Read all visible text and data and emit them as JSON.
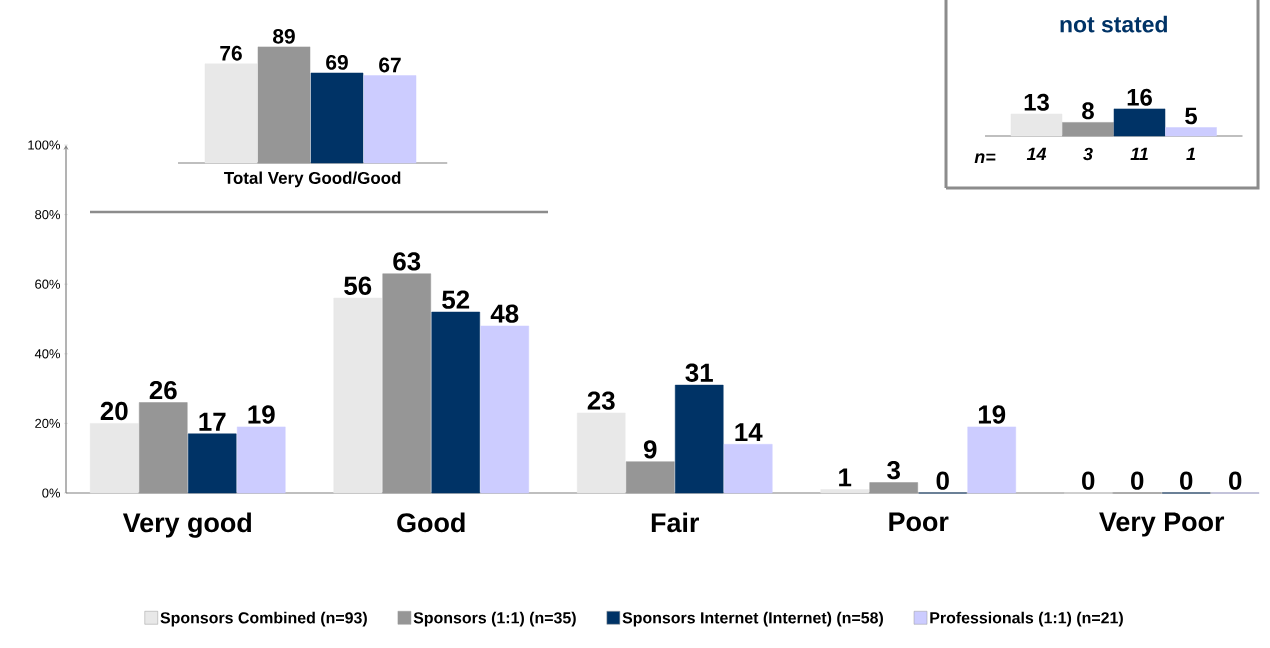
{
  "chart_data": [
    {
      "type": "bar",
      "categories": [
        "Very good",
        "Good",
        "Fair",
        "Poor",
        "Very Poor"
      ],
      "series": [
        {
          "name": "Sponsors Combined (n=93)",
          "color": "#e8e8e8",
          "values": [
            20,
            56,
            23,
            1,
            0
          ]
        },
        {
          "name": "Sponsors (1:1) (n=35)",
          "color": "#969696",
          "values": [
            26,
            63,
            9,
            3,
            0
          ]
        },
        {
          "name": "Sponsors Internet (Internet) (n=58)",
          "color": "#003366",
          "values": [
            17,
            52,
            31,
            0,
            0
          ]
        },
        {
          "name": "Professionals (1:1) (n=21)",
          "color": "#ccccff",
          "values": [
            19,
            48,
            14,
            19,
            0
          ]
        }
      ],
      "ylim": [
        0,
        100
      ],
      "yticks": [
        {
          "value": 0,
          "label": "0%"
        },
        {
          "value": 20,
          "label": "20%"
        },
        {
          "value": 40,
          "label": "40%"
        },
        {
          "value": 60,
          "label": "60%"
        },
        {
          "value": 80,
          "label": "80%"
        },
        {
          "value": 100,
          "label": "100%"
        }
      ],
      "data_labels": true,
      "legend": "bottom"
    },
    {
      "type": "bar",
      "xlabel": "Total Very Good/Good",
      "categories": [
        null,
        null,
        null,
        null
      ],
      "values": [
        76,
        89,
        69,
        67
      ],
      "colors": [
        "#e8e8e8",
        "#969696",
        "#003366",
        "#ccccff"
      ],
      "data_labels": true
    },
    {
      "type": "bar",
      "title": "not stated",
      "categories": [
        "14",
        "3",
        "11",
        "1"
      ],
      "values": [
        13,
        8,
        16,
        5
      ],
      "colors": [
        "#e8e8e8",
        "#969696",
        "#003366",
        "#ccccff"
      ],
      "data_labels": true,
      "annotations": [
        "n="
      ]
    }
  ]
}
